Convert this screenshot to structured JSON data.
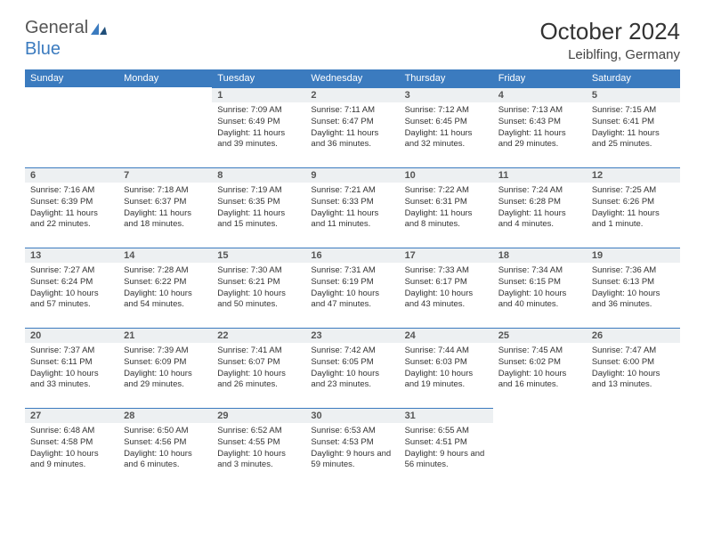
{
  "logo": {
    "text1": "General",
    "text2": "Blue"
  },
  "title": "October 2024",
  "location": "Leiblfing, Germany",
  "colors": {
    "header_bg": "#3b7bbf",
    "header_text": "#ffffff",
    "daynum_bg": "#edf0f2",
    "daynum_border": "#3b7bbf",
    "body_text": "#333333",
    "background": "#ffffff"
  },
  "day_headers": [
    "Sunday",
    "Monday",
    "Tuesday",
    "Wednesday",
    "Thursday",
    "Friday",
    "Saturday"
  ],
  "weeks": [
    [
      null,
      null,
      {
        "n": "1",
        "sr": "7:09 AM",
        "ss": "6:49 PM",
        "dl": "11 hours and 39 minutes."
      },
      {
        "n": "2",
        "sr": "7:11 AM",
        "ss": "6:47 PM",
        "dl": "11 hours and 36 minutes."
      },
      {
        "n": "3",
        "sr": "7:12 AM",
        "ss": "6:45 PM",
        "dl": "11 hours and 32 minutes."
      },
      {
        "n": "4",
        "sr": "7:13 AM",
        "ss": "6:43 PM",
        "dl": "11 hours and 29 minutes."
      },
      {
        "n": "5",
        "sr": "7:15 AM",
        "ss": "6:41 PM",
        "dl": "11 hours and 25 minutes."
      }
    ],
    [
      {
        "n": "6",
        "sr": "7:16 AM",
        "ss": "6:39 PM",
        "dl": "11 hours and 22 minutes."
      },
      {
        "n": "7",
        "sr": "7:18 AM",
        "ss": "6:37 PM",
        "dl": "11 hours and 18 minutes."
      },
      {
        "n": "8",
        "sr": "7:19 AM",
        "ss": "6:35 PM",
        "dl": "11 hours and 15 minutes."
      },
      {
        "n": "9",
        "sr": "7:21 AM",
        "ss": "6:33 PM",
        "dl": "11 hours and 11 minutes."
      },
      {
        "n": "10",
        "sr": "7:22 AM",
        "ss": "6:31 PM",
        "dl": "11 hours and 8 minutes."
      },
      {
        "n": "11",
        "sr": "7:24 AM",
        "ss": "6:28 PM",
        "dl": "11 hours and 4 minutes."
      },
      {
        "n": "12",
        "sr": "7:25 AM",
        "ss": "6:26 PM",
        "dl": "11 hours and 1 minute."
      }
    ],
    [
      {
        "n": "13",
        "sr": "7:27 AM",
        "ss": "6:24 PM",
        "dl": "10 hours and 57 minutes."
      },
      {
        "n": "14",
        "sr": "7:28 AM",
        "ss": "6:22 PM",
        "dl": "10 hours and 54 minutes."
      },
      {
        "n": "15",
        "sr": "7:30 AM",
        "ss": "6:21 PM",
        "dl": "10 hours and 50 minutes."
      },
      {
        "n": "16",
        "sr": "7:31 AM",
        "ss": "6:19 PM",
        "dl": "10 hours and 47 minutes."
      },
      {
        "n": "17",
        "sr": "7:33 AM",
        "ss": "6:17 PM",
        "dl": "10 hours and 43 minutes."
      },
      {
        "n": "18",
        "sr": "7:34 AM",
        "ss": "6:15 PM",
        "dl": "10 hours and 40 minutes."
      },
      {
        "n": "19",
        "sr": "7:36 AM",
        "ss": "6:13 PM",
        "dl": "10 hours and 36 minutes."
      }
    ],
    [
      {
        "n": "20",
        "sr": "7:37 AM",
        "ss": "6:11 PM",
        "dl": "10 hours and 33 minutes."
      },
      {
        "n": "21",
        "sr": "7:39 AM",
        "ss": "6:09 PM",
        "dl": "10 hours and 29 minutes."
      },
      {
        "n": "22",
        "sr": "7:41 AM",
        "ss": "6:07 PM",
        "dl": "10 hours and 26 minutes."
      },
      {
        "n": "23",
        "sr": "7:42 AM",
        "ss": "6:05 PM",
        "dl": "10 hours and 23 minutes."
      },
      {
        "n": "24",
        "sr": "7:44 AM",
        "ss": "6:03 PM",
        "dl": "10 hours and 19 minutes."
      },
      {
        "n": "25",
        "sr": "7:45 AM",
        "ss": "6:02 PM",
        "dl": "10 hours and 16 minutes."
      },
      {
        "n": "26",
        "sr": "7:47 AM",
        "ss": "6:00 PM",
        "dl": "10 hours and 13 minutes."
      }
    ],
    [
      {
        "n": "27",
        "sr": "6:48 AM",
        "ss": "4:58 PM",
        "dl": "10 hours and 9 minutes."
      },
      {
        "n": "28",
        "sr": "6:50 AM",
        "ss": "4:56 PM",
        "dl": "10 hours and 6 minutes."
      },
      {
        "n": "29",
        "sr": "6:52 AM",
        "ss": "4:55 PM",
        "dl": "10 hours and 3 minutes."
      },
      {
        "n": "30",
        "sr": "6:53 AM",
        "ss": "4:53 PM",
        "dl": "9 hours and 59 minutes."
      },
      {
        "n": "31",
        "sr": "6:55 AM",
        "ss": "4:51 PM",
        "dl": "9 hours and 56 minutes."
      },
      null,
      null
    ]
  ],
  "labels": {
    "sunrise": "Sunrise:",
    "sunset": "Sunset:",
    "daylight": "Daylight:"
  }
}
